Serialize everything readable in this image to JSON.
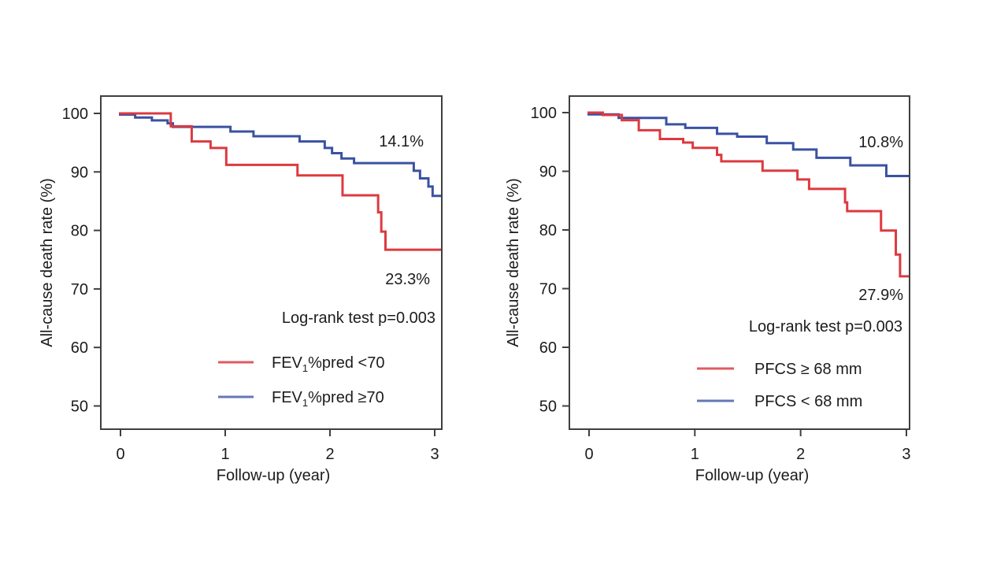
{
  "figure": {
    "background": "#ffffff",
    "axis_color": "#3f3f3f",
    "text_color": "#1c1c1c"
  },
  "chart_data": [
    {
      "type": "line",
      "subtype": "kaplan_meier_step",
      "panel": "left",
      "title": "",
      "xlabel": "Follow-up (year)",
      "ylabel": "All-cause death rate (%)",
      "xlim": [
        0,
        3
      ],
      "ylim": [
        50,
        100
      ],
      "xticks": [
        "0",
        "1",
        "2",
        "3"
      ],
      "yticks": [
        "100",
        "90",
        "80",
        "70",
        "60",
        "50"
      ],
      "grid": false,
      "legend_position": "inside-bottom-left",
      "stat_label": "Log-rank test p=0.003",
      "series": [
        {
          "name": "FEV1%pred <70",
          "legend": {
            "prefix": "FEV",
            "sub": "1",
            "suffix": "%pred <70"
          },
          "color": "#dc3a40",
          "swatch_color": "#e05a60",
          "end_label": "23.3%",
          "points": [
            [
              0,
              100
            ],
            [
              0.48,
              97.8
            ],
            [
              0.68,
              95.2
            ],
            [
              0.86,
              94.1
            ],
            [
              1.01,
              91.2
            ],
            [
              1.69,
              89.4
            ],
            [
              2.12,
              86.0
            ],
            [
              2.46,
              83.1
            ],
            [
              2.49,
              79.8
            ],
            [
              2.53,
              76.7
            ]
          ]
        },
        {
          "name": "FEV1%pred ≥70",
          "legend": {
            "prefix": "FEV",
            "sub": "1",
            "suffix": "%pred ≥70"
          },
          "color": "#3a52a2",
          "swatch_color": "#6478b4",
          "end_label": "14.1%",
          "points": [
            [
              0,
              99.8
            ],
            [
              0.14,
              99.3
            ],
            [
              0.3,
              98.8
            ],
            [
              0.45,
              98.3
            ],
            [
              0.5,
              97.7
            ],
            [
              1.05,
              96.9
            ],
            [
              1.27,
              96.1
            ],
            [
              1.71,
              95.2
            ],
            [
              1.95,
              94.1
            ],
            [
              2.02,
              93.2
            ],
            [
              2.11,
              92.3
            ],
            [
              2.23,
              91.5
            ],
            [
              2.8,
              90.2
            ],
            [
              2.86,
              88.9
            ],
            [
              2.94,
              87.5
            ],
            [
              2.98,
              85.9
            ]
          ]
        }
      ]
    },
    {
      "type": "line",
      "subtype": "kaplan_meier_step",
      "panel": "right",
      "title": "",
      "xlabel": "Follow-up (year)",
      "ylabel": "All-cause death rate (%)",
      "xlim": [
        0,
        3
      ],
      "ylim": [
        50,
        100
      ],
      "xticks": [
        "0",
        "1",
        "2",
        "3"
      ],
      "yticks": [
        "100",
        "90",
        "80",
        "70",
        "60",
        "50"
      ],
      "grid": false,
      "legend_position": "inside-bottom-left",
      "stat_label": "Log-rank test p=0.003",
      "series": [
        {
          "name": "PFCS ≥ 68 mm",
          "legend": {
            "prefix": "PFCS ≥ 68 mm",
            "sub": "",
            "suffix": ""
          },
          "color": "#dc3a40",
          "swatch_color": "#e05a60",
          "end_label": "27.9%",
          "points": [
            [
              0,
              100
            ],
            [
              0.13,
              99.6
            ],
            [
              0.31,
              98.7
            ],
            [
              0.47,
              97.0
            ],
            [
              0.67,
              95.5
            ],
            [
              0.89,
              94.9
            ],
            [
              0.98,
              94.0
            ],
            [
              1.21,
              92.8
            ],
            [
              1.25,
              91.7
            ],
            [
              1.64,
              90.1
            ],
            [
              1.97,
              88.6
            ],
            [
              2.08,
              87.0
            ],
            [
              2.42,
              84.7
            ],
            [
              2.44,
              83.2
            ],
            [
              2.76,
              79.9
            ],
            [
              2.9,
              75.8
            ],
            [
              2.94,
              72.1
            ]
          ]
        },
        {
          "name": "PFCS < 68 mm",
          "legend": {
            "prefix": "PFCS < 68 mm",
            "sub": "",
            "suffix": ""
          },
          "color": "#3a52a2",
          "swatch_color": "#6478b4",
          "end_label": "10.8%",
          "points": [
            [
              0,
              99.7
            ],
            [
              0.28,
              99.1
            ],
            [
              0.73,
              98.0
            ],
            [
              0.91,
              97.4
            ],
            [
              1.21,
              96.4
            ],
            [
              1.4,
              95.9
            ],
            [
              1.68,
              94.8
            ],
            [
              1.93,
              93.7
            ],
            [
              2.15,
              92.3
            ],
            [
              2.47,
              91.0
            ],
            [
              2.81,
              89.2
            ]
          ]
        }
      ]
    }
  ]
}
